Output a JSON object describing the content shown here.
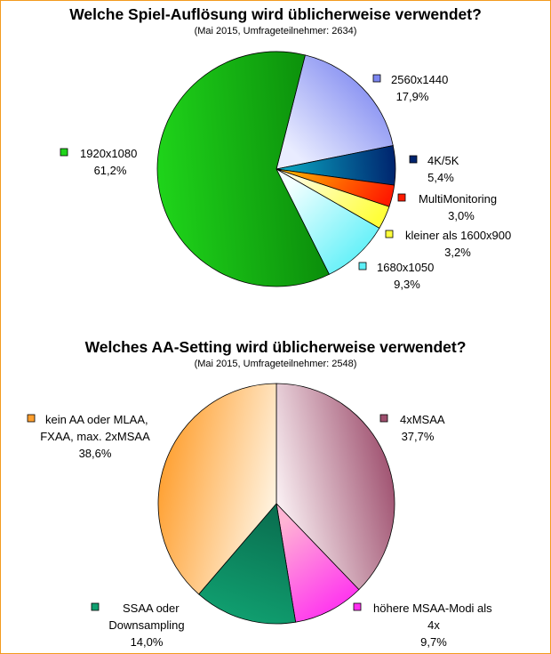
{
  "chart_data": [
    {
      "type": "pie",
      "title": "Welche Spiel-Auflösung wird üblicherweise verwendet?",
      "subtitle": "(Mai 2015, Umfrageteilnehmer: 2634)",
      "slices": [
        {
          "label": "2560x1440",
          "value_text": "17,9%",
          "value": 17.9,
          "color": "#7c86f0",
          "color_light": "#e9ecff"
        },
        {
          "label": "4K/5K",
          "value_text": "5,4%",
          "value": 5.4,
          "color": "#00246e",
          "color_light": "#0aaec6"
        },
        {
          "label": "MultiMonitoring",
          "value_text": "3,0%",
          "value": 3.0,
          "color": "#ff1a00",
          "color_light": "#ffb000"
        },
        {
          "label": "kleiner als 1600x900",
          "value_text": "3,2%",
          "value": 3.2,
          "color": "#ffff3a",
          "color_light": "#fffde0"
        },
        {
          "label": "1680x1050",
          "value_text": "9,3%",
          "value": 9.3,
          "color": "#5ef0f8",
          "color_light": "#f2ffff"
        },
        {
          "label": "1920x1080",
          "value_text": "61,2%",
          "value": 61.2,
          "color": "#1fd41a",
          "color_light": "#0a8a0a"
        }
      ]
    },
    {
      "type": "pie",
      "title": "Welches AA-Setting wird üblicherweise verwendet?",
      "subtitle": "(Mai 2015, Umfrageteilnehmer: 2548)",
      "slices": [
        {
          "label_lines": [
            "4xMSAA"
          ],
          "value_text": "37,7%",
          "value": 37.7,
          "color": "#9e4f6e",
          "color_light": "#fbf2f5"
        },
        {
          "label_lines": [
            "höhere MSAA-Modi als",
            "4x"
          ],
          "value_text": "9,7%",
          "value": 9.7,
          "color": "#ff2ff0",
          "color_light": "#ffb4d4"
        },
        {
          "label_lines": [
            "SSAA oder",
            "Downsampling"
          ],
          "value_text": "14,0%",
          "value": 14.0,
          "color": "#10a070",
          "color_light": "#0a6f50"
        },
        {
          "label_lines": [
            "kein AA oder MLAA,",
            "FXAA, max. 2xMSAA"
          ],
          "value_text": "38,6%",
          "value": 38.6,
          "color": "#ff9f2f",
          "color_light": "#fff4e2"
        }
      ]
    }
  ]
}
